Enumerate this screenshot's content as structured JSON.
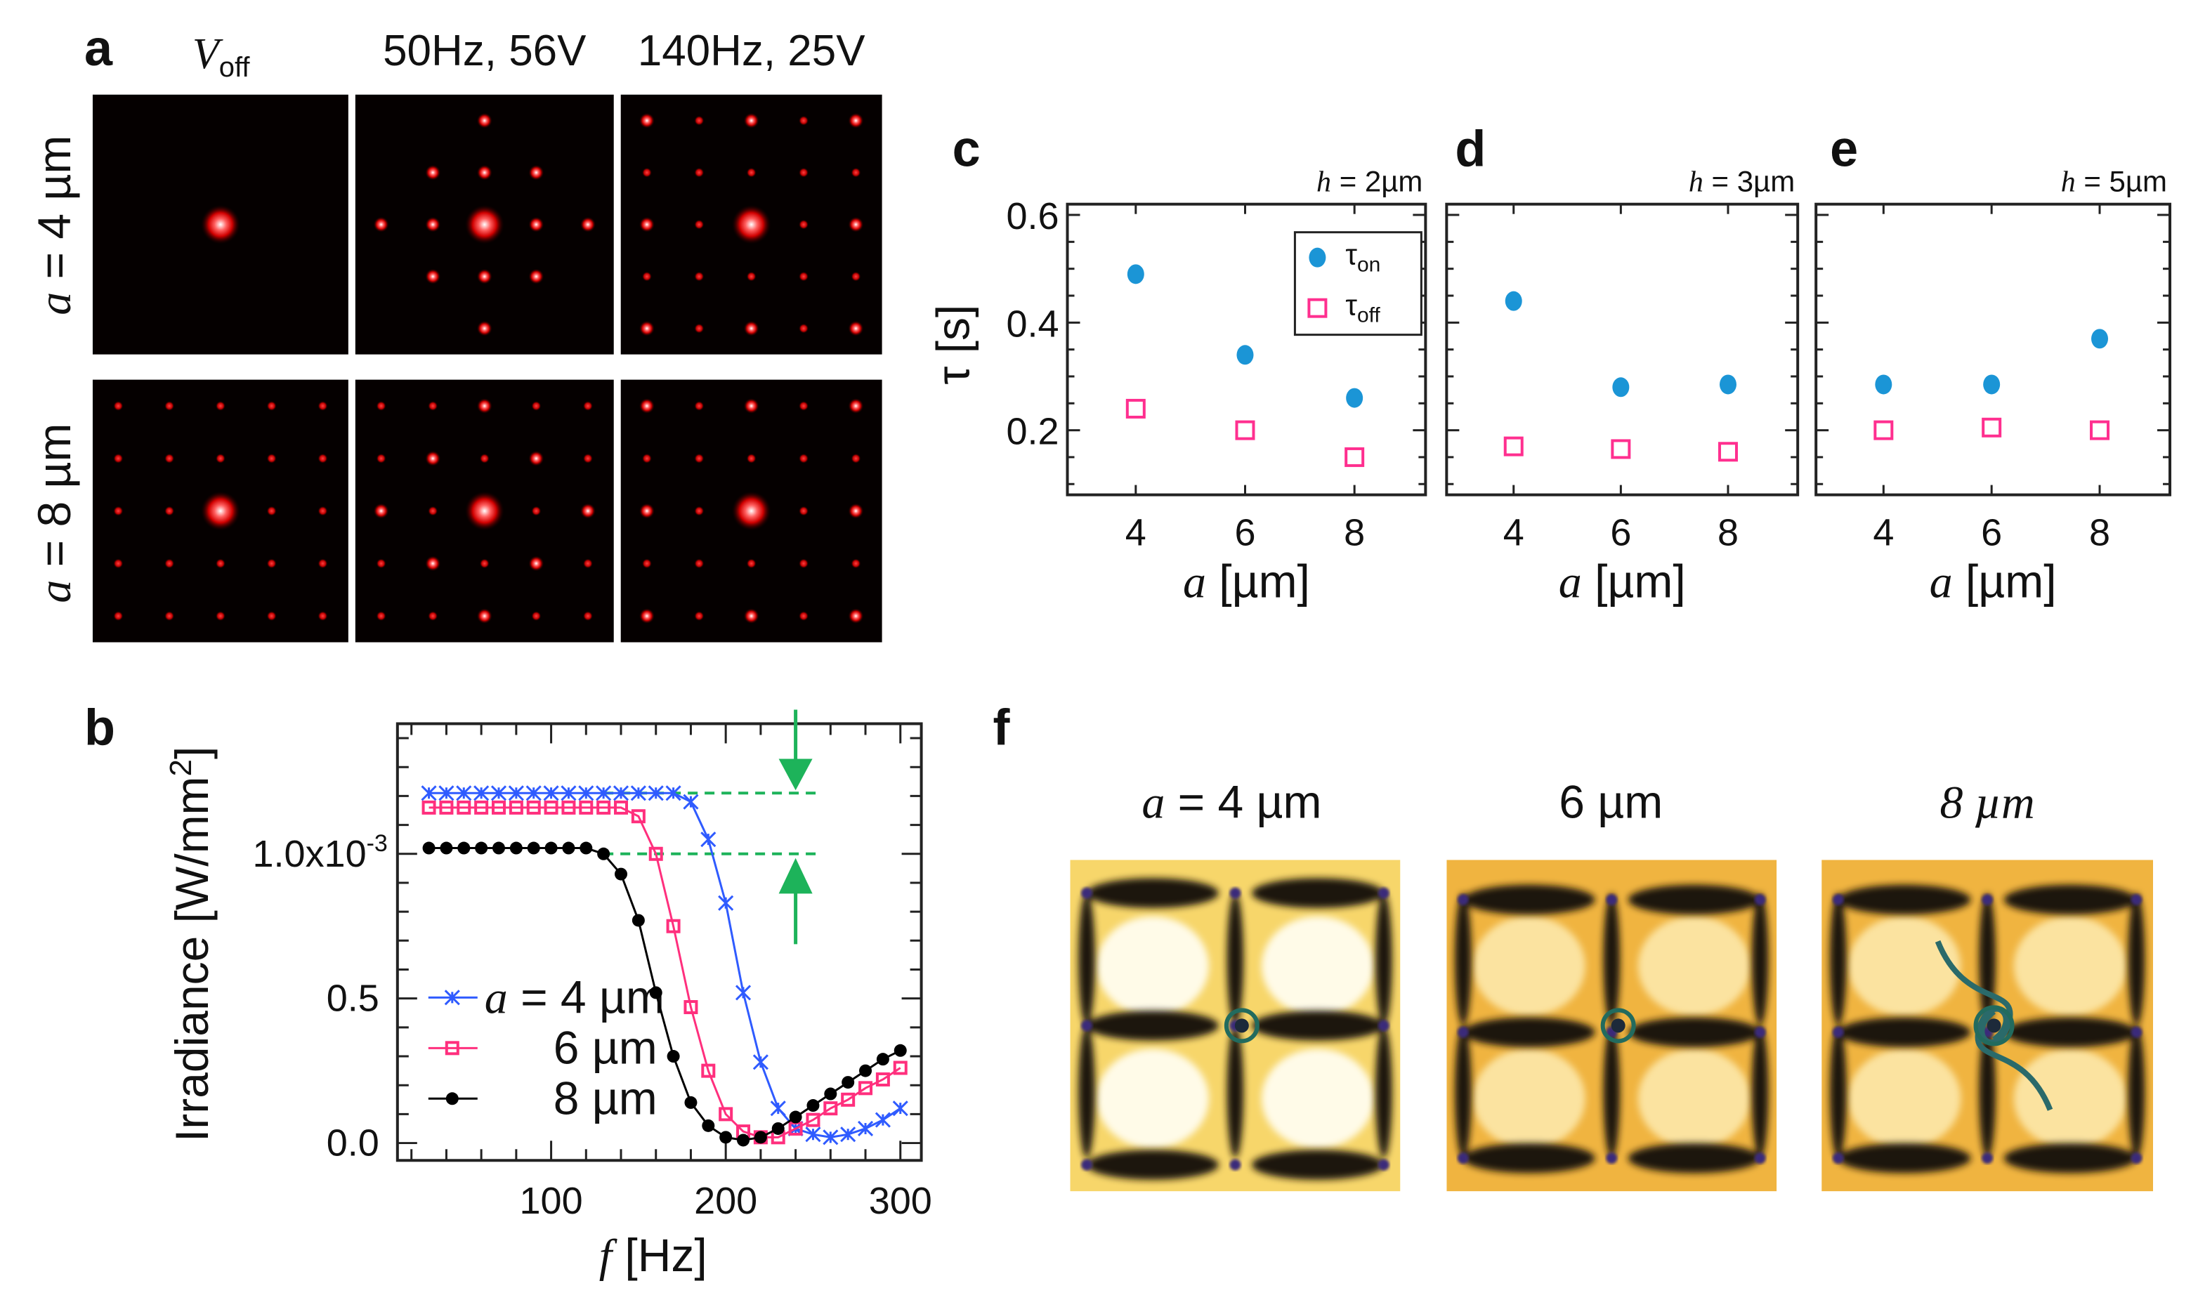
{
  "panel_a": {
    "label": "a",
    "columns": [
      {
        "main": "V",
        "sub": "off"
      },
      {
        "main": "50Hz, 56V"
      },
      {
        "main": "140Hz, 25V"
      }
    ],
    "rows": [
      {
        "var": "a",
        "rest": " = 4 µm"
      },
      {
        "var": "a",
        "rest": " = 8 µm"
      }
    ]
  },
  "panel_b": {
    "label": "b"
  },
  "panel_c": {
    "label": "c"
  },
  "panel_d": {
    "label": "d"
  },
  "panel_e": {
    "label": "e"
  },
  "panel_f": {
    "label": "f",
    "images": [
      {
        "var": "a",
        "rest": " = 4 µm"
      },
      {
        "var": "",
        "rest": "6 µm"
      },
      {
        "var": "",
        "rest": "8 µm"
      }
    ]
  },
  "colors": {
    "a4": "#2f5bff",
    "a6": "#ff2f7d",
    "a8": "#000000",
    "tau_on": "#1b95d6",
    "tau_off": "#ff2f8f",
    "arrow": "#1db35a"
  },
  "chart_data": [
    {
      "id": "b",
      "type": "line",
      "xlabel": {
        "var": "f",
        "rest": " [Hz]"
      },
      "ylabel": {
        "main": "Irradiance [W/mm",
        "sup": "2",
        "close": "]"
      },
      "xlim": [
        12,
        312
      ],
      "ylim": [
        -0.06,
        1.45
      ],
      "xticks": [
        {
          "v": 100,
          "label": "100"
        },
        {
          "v": 200,
          "label": "200"
        },
        {
          "v": 300,
          "label": "300"
        }
      ],
      "yticks": [
        {
          "v": 0.0,
          "label": "0.0"
        },
        {
          "v": 0.5,
          "label": "0.5"
        },
        {
          "v": 1.0,
          "label": "1.0x10",
          "sup": "-3"
        }
      ],
      "y_unit_scale": "1e-3",
      "x": [
        30,
        40,
        50,
        60,
        70,
        80,
        90,
        100,
        110,
        120,
        130,
        140,
        150,
        160,
        170,
        180,
        190,
        200,
        210,
        220,
        230,
        240,
        250,
        260,
        270,
        280,
        290,
        300
      ],
      "series": [
        {
          "name": "a = 4 µm",
          "var": "a",
          "legend": " = 4 µm",
          "marker": "x",
          "color_key": "a4",
          "values": [
            1.21,
            1.21,
            1.21,
            1.21,
            1.21,
            1.21,
            1.21,
            1.21,
            1.21,
            1.21,
            1.21,
            1.21,
            1.21,
            1.21,
            1.21,
            1.18,
            1.05,
            0.83,
            0.52,
            0.28,
            0.12,
            0.05,
            0.03,
            0.02,
            0.03,
            0.05,
            0.08,
            0.12
          ]
        },
        {
          "name": "6 µm",
          "var": "",
          "legend": "6 µm",
          "marker": "square",
          "color_key": "a6",
          "values": [
            1.16,
            1.16,
            1.16,
            1.16,
            1.16,
            1.16,
            1.16,
            1.16,
            1.16,
            1.16,
            1.16,
            1.16,
            1.13,
            1.0,
            0.75,
            0.47,
            0.25,
            0.1,
            0.04,
            0.02,
            0.02,
            0.05,
            0.08,
            0.12,
            0.15,
            0.19,
            0.22,
            0.26
          ]
        },
        {
          "name": "8 µm",
          "var": "",
          "legend": "8 µm",
          "marker": "dot",
          "color_key": "a8",
          "values": [
            1.02,
            1.02,
            1.02,
            1.02,
            1.02,
            1.02,
            1.02,
            1.02,
            1.02,
            1.02,
            1.0,
            0.93,
            0.77,
            0.52,
            0.3,
            0.14,
            0.06,
            0.02,
            0.01,
            0.02,
            0.05,
            0.09,
            0.13,
            0.17,
            0.21,
            0.25,
            0.29,
            0.32
          ]
        }
      ],
      "reference_lines": [
        1.21,
        1.0
      ],
      "legend_position": "bottom-left"
    },
    {
      "id": "c",
      "type": "scatter",
      "subtitle": {
        "var": "h",
        "rest": " = 2µm"
      },
      "xlabel": {
        "var": "a",
        "rest": " [µm]"
      },
      "ylabel": "τ [s]",
      "xlim": [
        2.75,
        9.3
      ],
      "ylim": [
        0.08,
        0.62
      ],
      "xticks": [
        "4",
        "6",
        "8"
      ],
      "yticks": [
        "0.2",
        "0.4",
        "0.6"
      ],
      "x": [
        4,
        6,
        8
      ],
      "series": [
        {
          "name": "τon",
          "sym": "τ",
          "sub": "on",
          "marker": "dot",
          "values": [
            0.49,
            0.34,
            0.26
          ]
        },
        {
          "name": "τoff",
          "sym": "τ",
          "sub": "off",
          "marker": "square",
          "values": [
            0.24,
            0.2,
            0.15
          ]
        }
      ],
      "legend_position": "top-right"
    },
    {
      "id": "d",
      "type": "scatter",
      "subtitle": {
        "var": "h",
        "rest": " = 3µm"
      },
      "xlabel": {
        "var": "a",
        "rest": " [µm]"
      },
      "xlim": [
        2.75,
        9.3
      ],
      "ylim": [
        0.08,
        0.62
      ],
      "xticks": [
        "4",
        "6",
        "8"
      ],
      "x": [
        4,
        6,
        8
      ],
      "series": [
        {
          "name": "τon",
          "marker": "dot",
          "values": [
            0.44,
            0.28,
            0.285
          ]
        },
        {
          "name": "τoff",
          "marker": "square",
          "values": [
            0.17,
            0.165,
            0.16
          ]
        }
      ]
    },
    {
      "id": "e",
      "type": "scatter",
      "subtitle": {
        "var": "h",
        "rest": " = 5µm"
      },
      "xlabel": {
        "var": "a",
        "rest": " [µm]"
      },
      "xlim": [
        2.75,
        9.3
      ],
      "ylim": [
        0.08,
        0.62
      ],
      "xticks": [
        "4",
        "6",
        "8"
      ],
      "x": [
        4,
        6,
        8
      ],
      "series": [
        {
          "name": "τon",
          "marker": "dot",
          "values": [
            0.285,
            0.285,
            0.37
          ]
        },
        {
          "name": "τoff",
          "marker": "square",
          "values": [
            0.2,
            0.205,
            0.2
          ]
        }
      ]
    }
  ]
}
